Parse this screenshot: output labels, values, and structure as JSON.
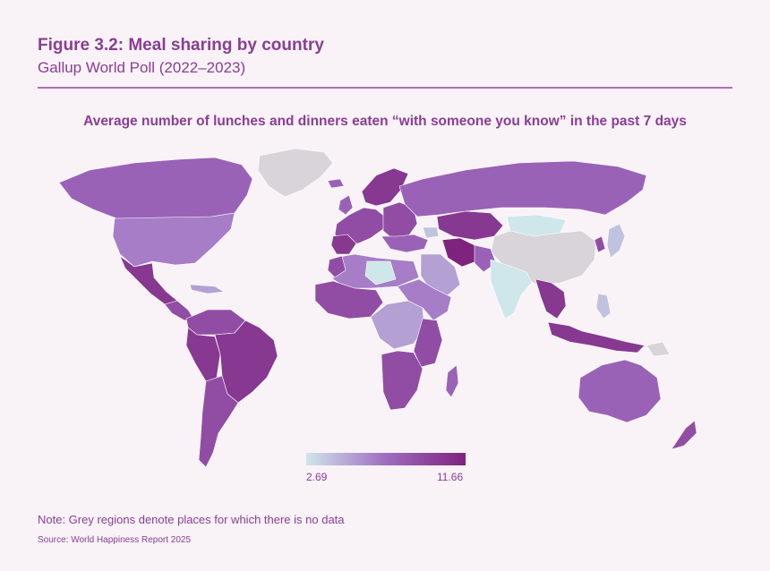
{
  "header": {
    "title": "Figure 3.2: Meal sharing by country",
    "subtitle": "Gallup World Poll (2022–2023)"
  },
  "map": {
    "heading": "Average number of lunches and dinners eaten “with someone you know” in the past 7 days",
    "colors": {
      "no_data": "#d9d4d9",
      "scale_low": "#cfe6ea",
      "scale_mid": "#9f6cc0",
      "scale_high": "#7e237e"
    },
    "legend": {
      "min": "2.69",
      "max": "11.66"
    }
  },
  "footer": {
    "note": "Note: Grey regions denote places for which there is no data",
    "source": "Source: World Happiness Report 2025"
  }
}
